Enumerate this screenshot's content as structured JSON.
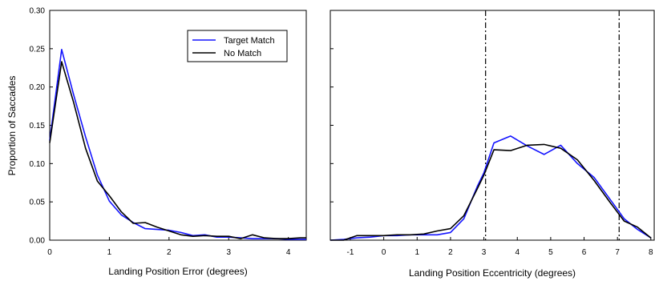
{
  "chart_data": [
    {
      "type": "line",
      "title": "",
      "xlabel": "Landing Position Error (degrees)",
      "ylabel": "Proportion of Saccades",
      "xlim": [
        0,
        4.3
      ],
      "ylim": [
        0,
        0.3
      ],
      "xticks": [
        "0",
        "1",
        "2",
        "3",
        "4"
      ],
      "yticks": [
        "0.00",
        "0.05",
        "0.10",
        "0.15",
        "0.20",
        "0.25",
        "0.30"
      ],
      "grid": false,
      "legend": {
        "position": "top-right"
      },
      "x": [
        0,
        0.2,
        0.4,
        0.6,
        0.8,
        1.0,
        1.2,
        1.4,
        1.6,
        1.8,
        2.0,
        2.2,
        2.4,
        2.6,
        2.8,
        3.0,
        3.2,
        3.4,
        3.6,
        3.8,
        4.0,
        4.2,
        4.3
      ],
      "series": [
        {
          "name": "Target Match",
          "color": "#1414ff",
          "values": [
            0.13,
            0.249,
            0.19,
            0.135,
            0.085,
            0.051,
            0.033,
            0.023,
            0.015,
            0.014,
            0.013,
            0.01,
            0.006,
            0.007,
            0.004,
            0.004,
            0.003,
            0.002,
            0.002,
            0.002,
            0.001,
            0.001,
            0.001
          ]
        },
        {
          "name": "No Match",
          "color": "#000000",
          "values": [
            0.127,
            0.233,
            0.18,
            0.12,
            0.077,
            0.058,
            0.037,
            0.022,
            0.023,
            0.017,
            0.012,
            0.007,
            0.005,
            0.006,
            0.005,
            0.005,
            0.002,
            0.007,
            0.003,
            0.002,
            0.002,
            0.003,
            0.003
          ]
        }
      ]
    },
    {
      "type": "line",
      "title": "",
      "xlabel": "Landing Position Eccentricity (degrees)",
      "ylabel": "",
      "xlim": [
        -1.6,
        8.1
      ],
      "ylim": [
        0,
        0.3
      ],
      "xticks": [
        "-1",
        "0",
        "1",
        "2",
        "3",
        "4",
        "5",
        "6",
        "7",
        "8"
      ],
      "grid": false,
      "reference_lines_x": [
        3.05,
        7.05
      ],
      "x": [
        -1.6,
        -1.2,
        -0.8,
        -0.4,
        0.0,
        0.4,
        0.8,
        1.2,
        1.6,
        2.0,
        2.4,
        2.8,
        3.0,
        3.3,
        3.8,
        4.3,
        4.8,
        5.3,
        5.8,
        6.3,
        6.8,
        7.2,
        7.6,
        8.0
      ],
      "series": [
        {
          "name": "Target Match",
          "color": "#1414ff",
          "values": [
            0.0,
            0.001,
            0.003,
            0.004,
            0.006,
            0.006,
            0.007,
            0.007,
            0.007,
            0.01,
            0.028,
            0.07,
            0.088,
            0.127,
            0.136,
            0.123,
            0.112,
            0.124,
            0.1,
            0.082,
            0.052,
            0.028,
            0.014,
            0.003
          ]
        },
        {
          "name": "No Match",
          "color": "#000000",
          "values": [
            0.0,
            0.0,
            0.006,
            0.006,
            0.006,
            0.007,
            0.007,
            0.008,
            0.012,
            0.015,
            0.032,
            0.067,
            0.085,
            0.118,
            0.117,
            0.124,
            0.125,
            0.12,
            0.105,
            0.078,
            0.048,
            0.025,
            0.017,
            0.003
          ]
        }
      ]
    }
  ]
}
